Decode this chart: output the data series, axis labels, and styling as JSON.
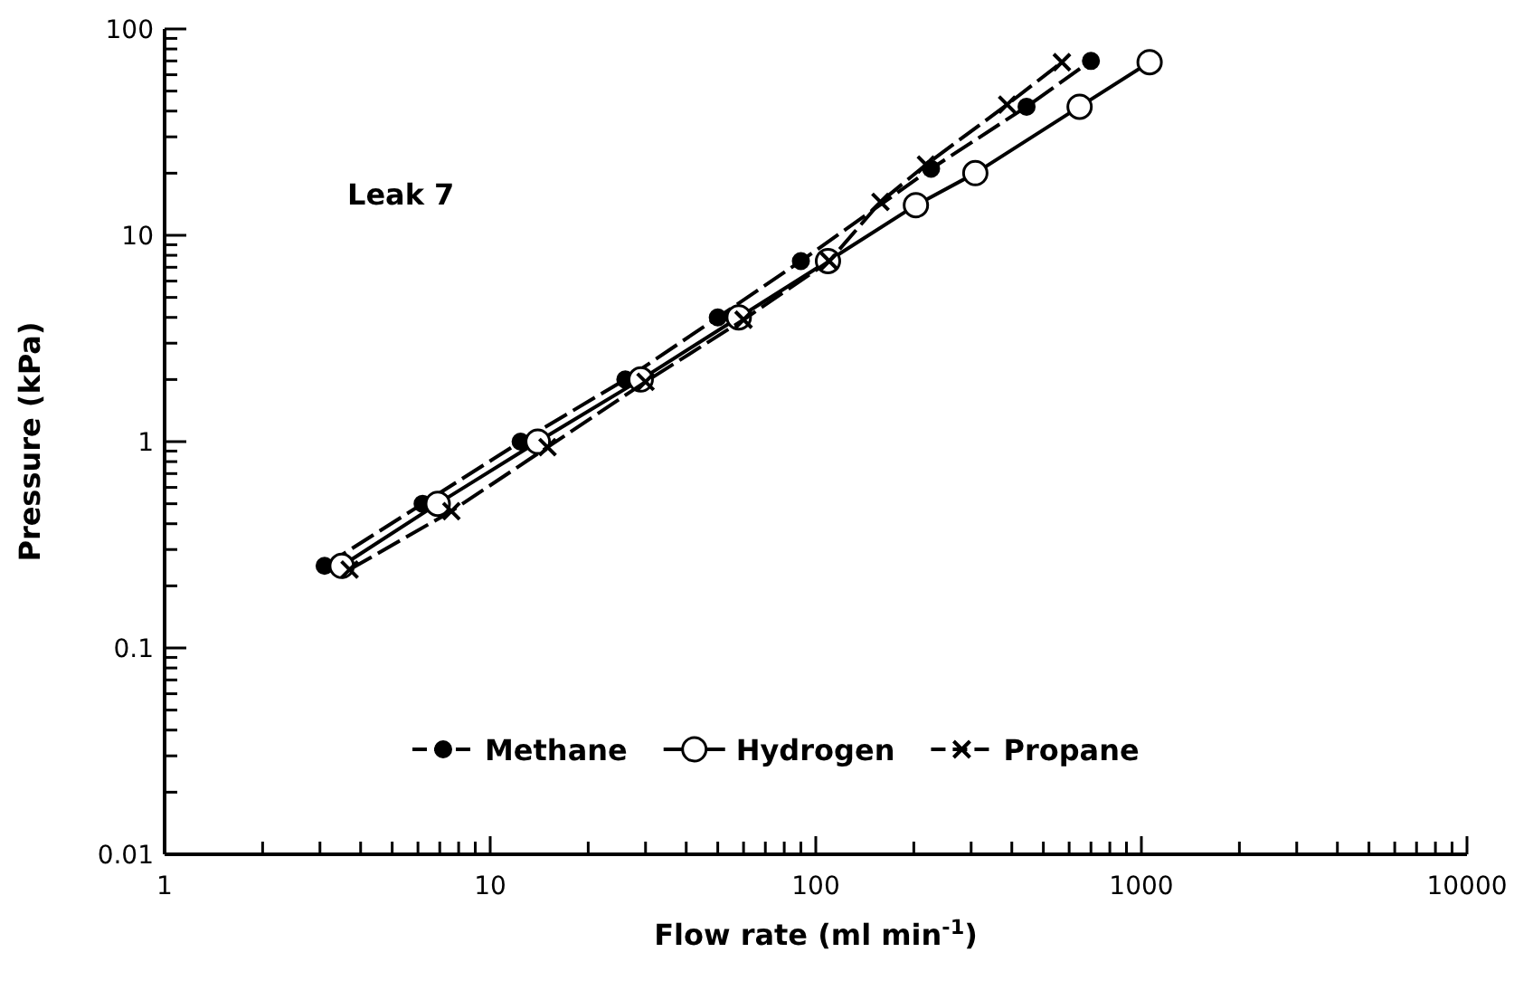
{
  "chart_data": {
    "type": "line",
    "xlabel": "Flow rate (ml min$^{-1}$)",
    "ylabel": "Pressure (kPa)",
    "annotations": [
      "Leak 7"
    ],
    "log": "xy",
    "grid": false,
    "legend": "bottom",
    "xlim": [
      1,
      10000
    ],
    "ylim": [
      0.01,
      100
    ],
    "xticks": [
      1,
      {
        "value": 2,
        "label": null
      },
      {
        "value": 3,
        "label": null
      },
      {
        "value": 4,
        "label": null
      },
      {
        "value": 5,
        "label": null
      },
      {
        "value": 6,
        "label": null
      },
      {
        "value": 7,
        "label": null
      },
      {
        "value": 8,
        "label": null
      },
      {
        "value": 9,
        "label": null
      },
      10,
      {
        "value": 20,
        "label": null
      },
      {
        "value": 30,
        "label": null
      },
      {
        "value": 40,
        "label": null
      },
      {
        "value": 50,
        "label": null
      },
      {
        "value": 60,
        "label": null
      },
      {
        "value": 70,
        "label": null
      },
      {
        "value": 80,
        "label": null
      },
      {
        "value": 90,
        "label": null
      },
      100,
      {
        "value": 200,
        "label": null
      },
      {
        "value": 300,
        "label": null
      },
      {
        "value": 400,
        "label": null
      },
      {
        "value": 500,
        "label": null
      },
      {
        "value": 600,
        "label": null
      },
      {
        "value": 700,
        "label": null
      },
      {
        "value": 800,
        "label": null
      },
      {
        "value": 900,
        "label": null
      },
      1000,
      {
        "value": 2000,
        "label": null
      },
      {
        "value": 3000,
        "label": null
      },
      {
        "value": 4000,
        "label": null
      },
      {
        "value": 5000,
        "label": null
      },
      {
        "value": 6000,
        "label": null
      },
      {
        "value": 7000,
        "label": null
      },
      {
        "value": 8000,
        "label": null
      },
      {
        "value": 9000,
        "label": null
      },
      10000
    ],
    "yticks": [
      0.01,
      {
        "value": 0.02,
        "label": null
      },
      {
        "value": 0.03,
        "label": null
      },
      {
        "value": 0.04,
        "label": null
      },
      {
        "value": 0.05,
        "label": null
      },
      {
        "value": 0.06,
        "label": null
      },
      {
        "value": 0.07,
        "label": null
      },
      {
        "value": 0.08,
        "label": null
      },
      {
        "value": 0.09,
        "label": null
      },
      0.1,
      {
        "value": 0.2,
        "label": null
      },
      {
        "value": 0.3,
        "label": null
      },
      {
        "value": 0.4,
        "label": null
      },
      {
        "value": 0.5,
        "label": null
      },
      {
        "value": 0.6,
        "label": null
      },
      {
        "value": 0.7,
        "label": null
      },
      {
        "value": 0.8,
        "label": null
      },
      {
        "value": 0.9,
        "label": null
      },
      1,
      {
        "value": 2,
        "label": null
      },
      {
        "value": 3,
        "label": null
      },
      {
        "value": 4,
        "label": null
      },
      {
        "value": 5,
        "label": null
      },
      {
        "value": 6,
        "label": null
      },
      {
        "value": 7,
        "label": null
      },
      {
        "value": 8,
        "label": null
      },
      {
        "value": 9,
        "label": null
      },
      10,
      {
        "value": 20,
        "label": null
      },
      {
        "value": 30,
        "label": null
      },
      {
        "value": 40,
        "label": null
      },
      {
        "value": 50,
        "label": null
      },
      {
        "value": 60,
        "label": null
      },
      {
        "value": 70,
        "label": null
      },
      {
        "value": 80,
        "label": null
      },
      {
        "value": 90,
        "label": null
      },
      100
    ],
    "series": [
      {
        "name": "Methane",
        "color": "#000000",
        "marker": "circle",
        "line_style": "dashed",
        "x": [
          3.1,
          6.2,
          12.4,
          26,
          50,
          90,
          226,
          444,
          700
        ],
        "values": [
          0.25,
          0.5,
          1,
          2,
          4,
          7.5,
          21,
          42,
          70
        ]
      },
      {
        "name": "Hydrogen",
        "color": "#000000",
        "marker": "circle-open",
        "line_style": "solid",
        "x": [
          3.5,
          6.9,
          14,
          29,
          58,
          109,
          203,
          309,
          646,
          1060
        ],
        "values": [
          0.25,
          0.5,
          1,
          2,
          4,
          7.5,
          14,
          20,
          42,
          69
        ]
      },
      {
        "name": "Propane",
        "color": "#000000",
        "marker": "cross",
        "line_style": "dashed",
        "x": [
          3.7,
          7.6,
          15,
          30,
          60,
          110,
          158,
          218,
          387,
          570
        ],
        "values": [
          0.24,
          0.46,
          0.94,
          1.95,
          3.9,
          7.5,
          14.5,
          22,
          43,
          69
        ]
      }
    ]
  }
}
